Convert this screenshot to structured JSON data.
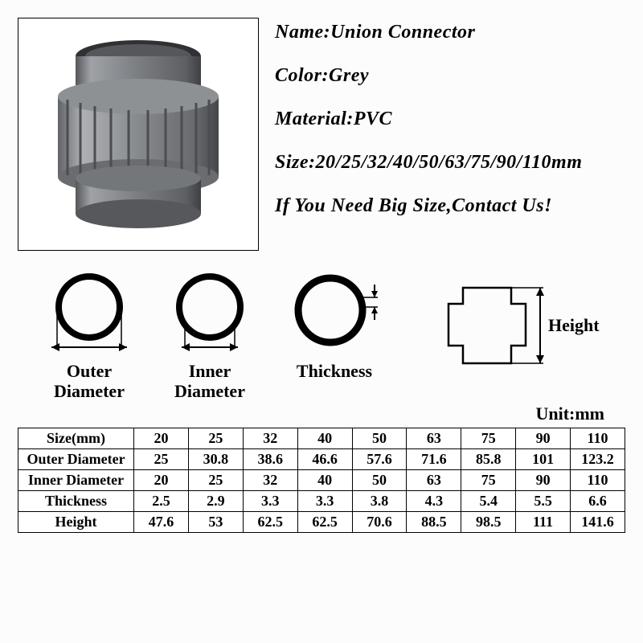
{
  "specs": {
    "nameLabel": "Name:",
    "name": "Union Connector",
    "colorLabel": "Color:",
    "color": "Grey",
    "materialLabel": "Material:",
    "material": "PVC",
    "sizeLabel": "Size:",
    "size": "20/25/32/40/50/63/75/90/110mm",
    "note": "If You Need Big Size,Contact Us!"
  },
  "diagramLabels": {
    "outer1": "Outer",
    "outer2": "Diameter",
    "inner1": "Inner",
    "inner2": "Diameter",
    "thickness": "Thickness",
    "height": "Height"
  },
  "unitLabel": "Unit:mm",
  "table": {
    "rowHeaders": [
      "Size(mm)",
      "Outer Diameter",
      "Inner Diameter",
      "Thickness",
      "Height"
    ],
    "rows": [
      [
        "20",
        "25",
        "32",
        "40",
        "50",
        "63",
        "75",
        "90",
        "110"
      ],
      [
        "25",
        "30.8",
        "38.6",
        "46.6",
        "57.6",
        "71.6",
        "85.8",
        "101",
        "123.2"
      ],
      [
        "20",
        "25",
        "32",
        "40",
        "50",
        "63",
        "75",
        "90",
        "110"
      ],
      [
        "2.5",
        "2.9",
        "3.3",
        "3.3",
        "3.8",
        "4.3",
        "5.4",
        "5.5",
        "6.6"
      ],
      [
        "47.6",
        "53",
        "62.5",
        "62.5",
        "70.6",
        "88.5",
        "98.5",
        "111",
        "141.6"
      ]
    ]
  },
  "colors": {
    "connectorBody": "#6e7072",
    "connectorDark": "#4b4d4f",
    "connectorLight": "#9b9d9f",
    "stroke": "#000000",
    "page": "#fcfcfc"
  }
}
